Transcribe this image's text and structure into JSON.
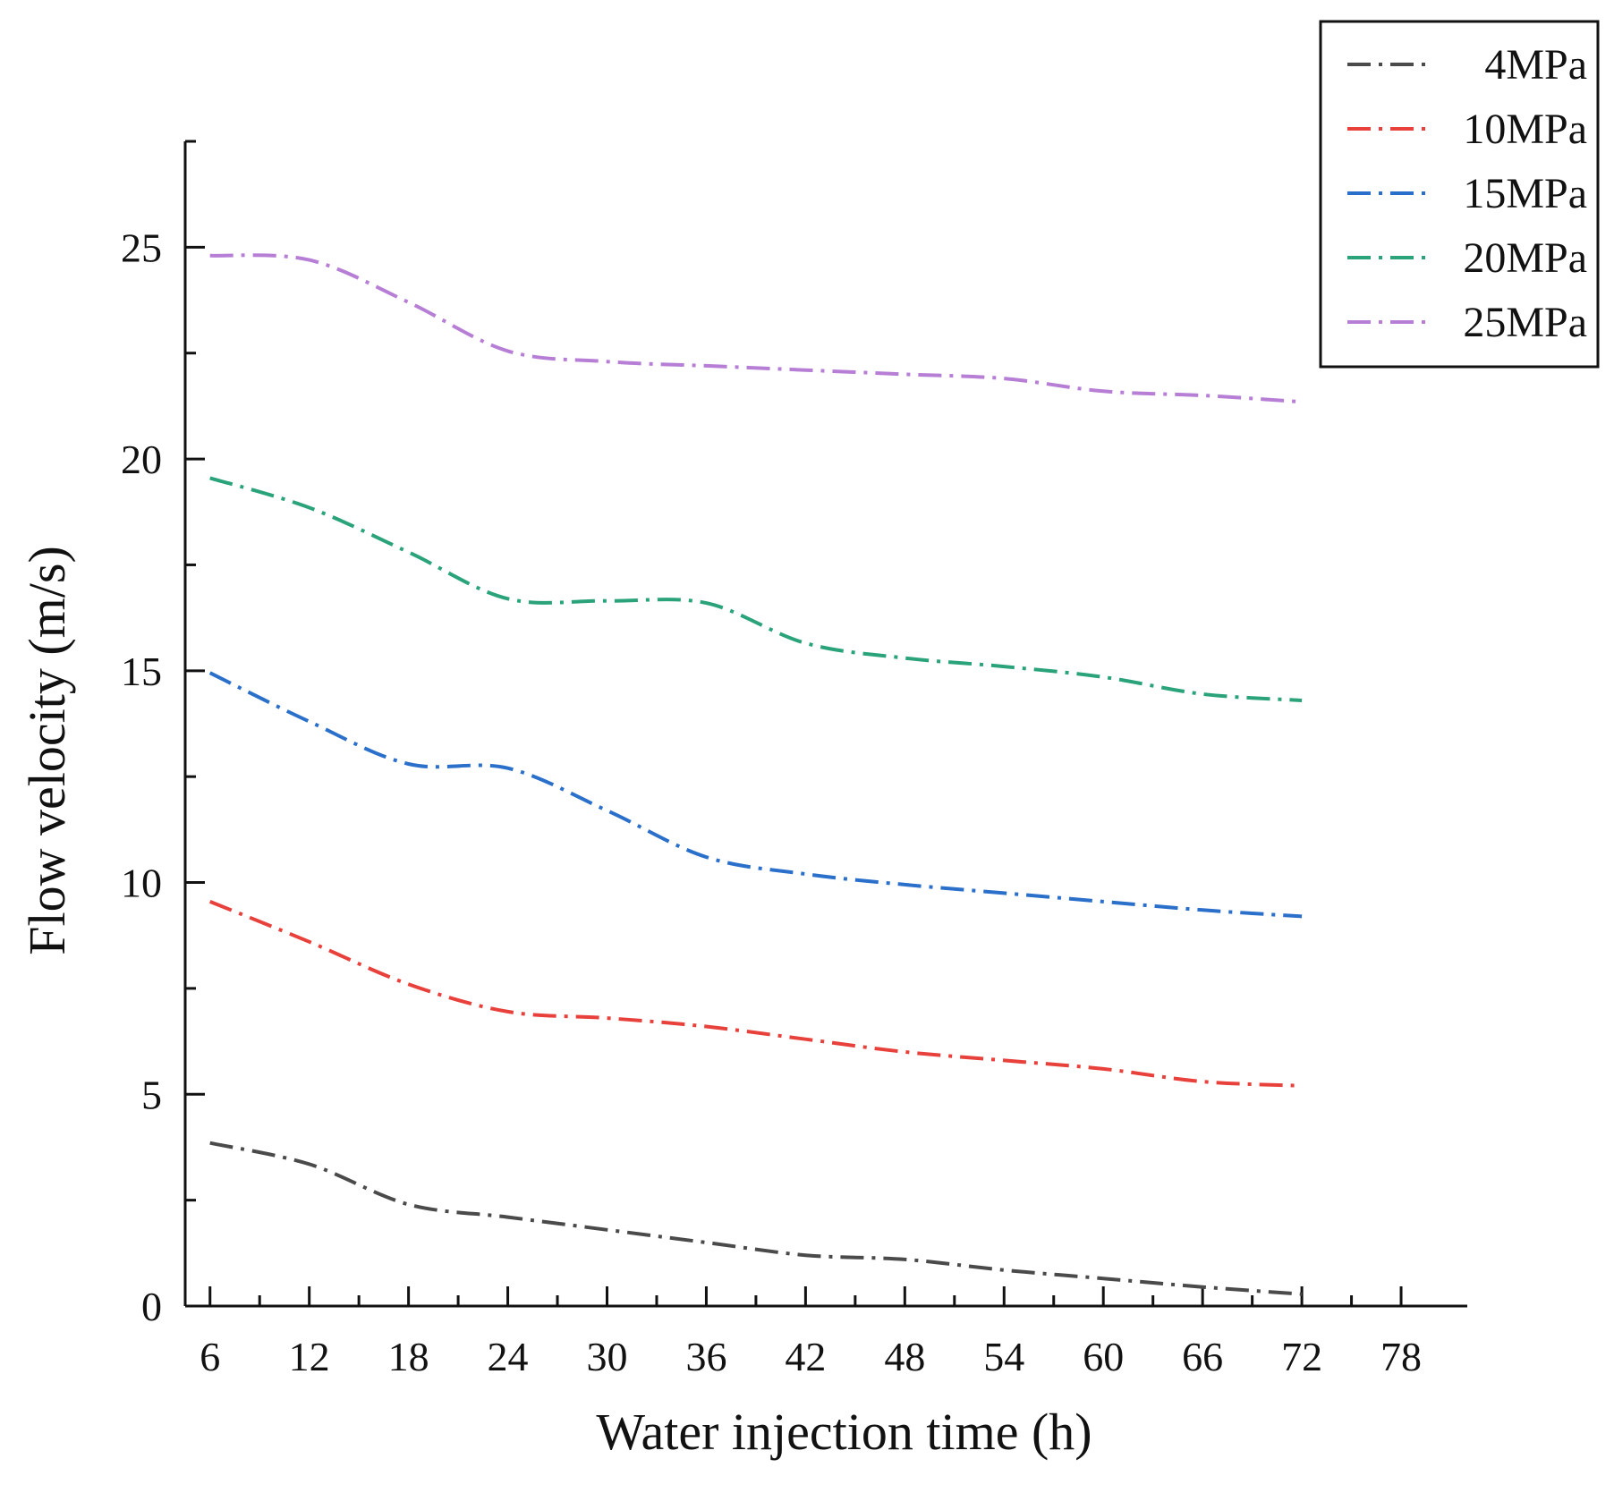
{
  "chart_data": {
    "type": "line",
    "title": "",
    "xlabel": "Water injection time (h)",
    "ylabel": "Flow velocity (m/s)",
    "xlim": [
      4.5,
      82
    ],
    "ylim": [
      0,
      27.5
    ],
    "x_ticks": [
      6,
      12,
      18,
      24,
      30,
      36,
      42,
      48,
      54,
      60,
      66,
      72,
      78
    ],
    "x_tick_labels": [
      "6",
      "12",
      "18",
      "24",
      "30",
      "36",
      "42",
      "48",
      "54",
      "60",
      "66",
      "72",
      "78"
    ],
    "y_ticks": [
      0,
      5,
      10,
      15,
      20,
      25
    ],
    "y_tick_labels": [
      "0",
      "5",
      "10",
      "15",
      "20",
      "25"
    ],
    "legend_position": "top-right",
    "grid": false,
    "x": [
      6,
      12,
      18,
      24,
      30,
      36,
      42,
      48,
      54,
      60,
      66,
      72
    ],
    "series": [
      {
        "name": "4MPa",
        "color": "#4a4a4a",
        "values": [
          3.85,
          3.35,
          2.4,
          2.1,
          1.8,
          1.5,
          1.2,
          1.1,
          0.85,
          0.65,
          0.45,
          0.28
        ]
      },
      {
        "name": "10MPa",
        "color": "#e8413c",
        "values": [
          9.55,
          8.6,
          7.6,
          6.95,
          6.8,
          6.6,
          6.3,
          6.0,
          5.8,
          5.6,
          5.3,
          5.2
        ]
      },
      {
        "name": "15MPa",
        "color": "#2a6fc9",
        "values": [
          14.95,
          13.8,
          12.8,
          12.7,
          11.7,
          10.6,
          10.2,
          9.95,
          9.75,
          9.55,
          9.35,
          9.2
        ]
      },
      {
        "name": "20MPa",
        "color": "#2aa37a",
        "values": [
          19.55,
          18.85,
          17.8,
          16.7,
          16.65,
          16.6,
          15.65,
          15.3,
          15.1,
          14.85,
          14.45,
          14.3
        ]
      },
      {
        "name": "25MPa",
        "color": "#b77ed6",
        "values": [
          24.8,
          24.7,
          23.7,
          22.55,
          22.3,
          22.2,
          22.1,
          22.0,
          21.9,
          21.6,
          21.5,
          21.35
        ]
      }
    ]
  }
}
